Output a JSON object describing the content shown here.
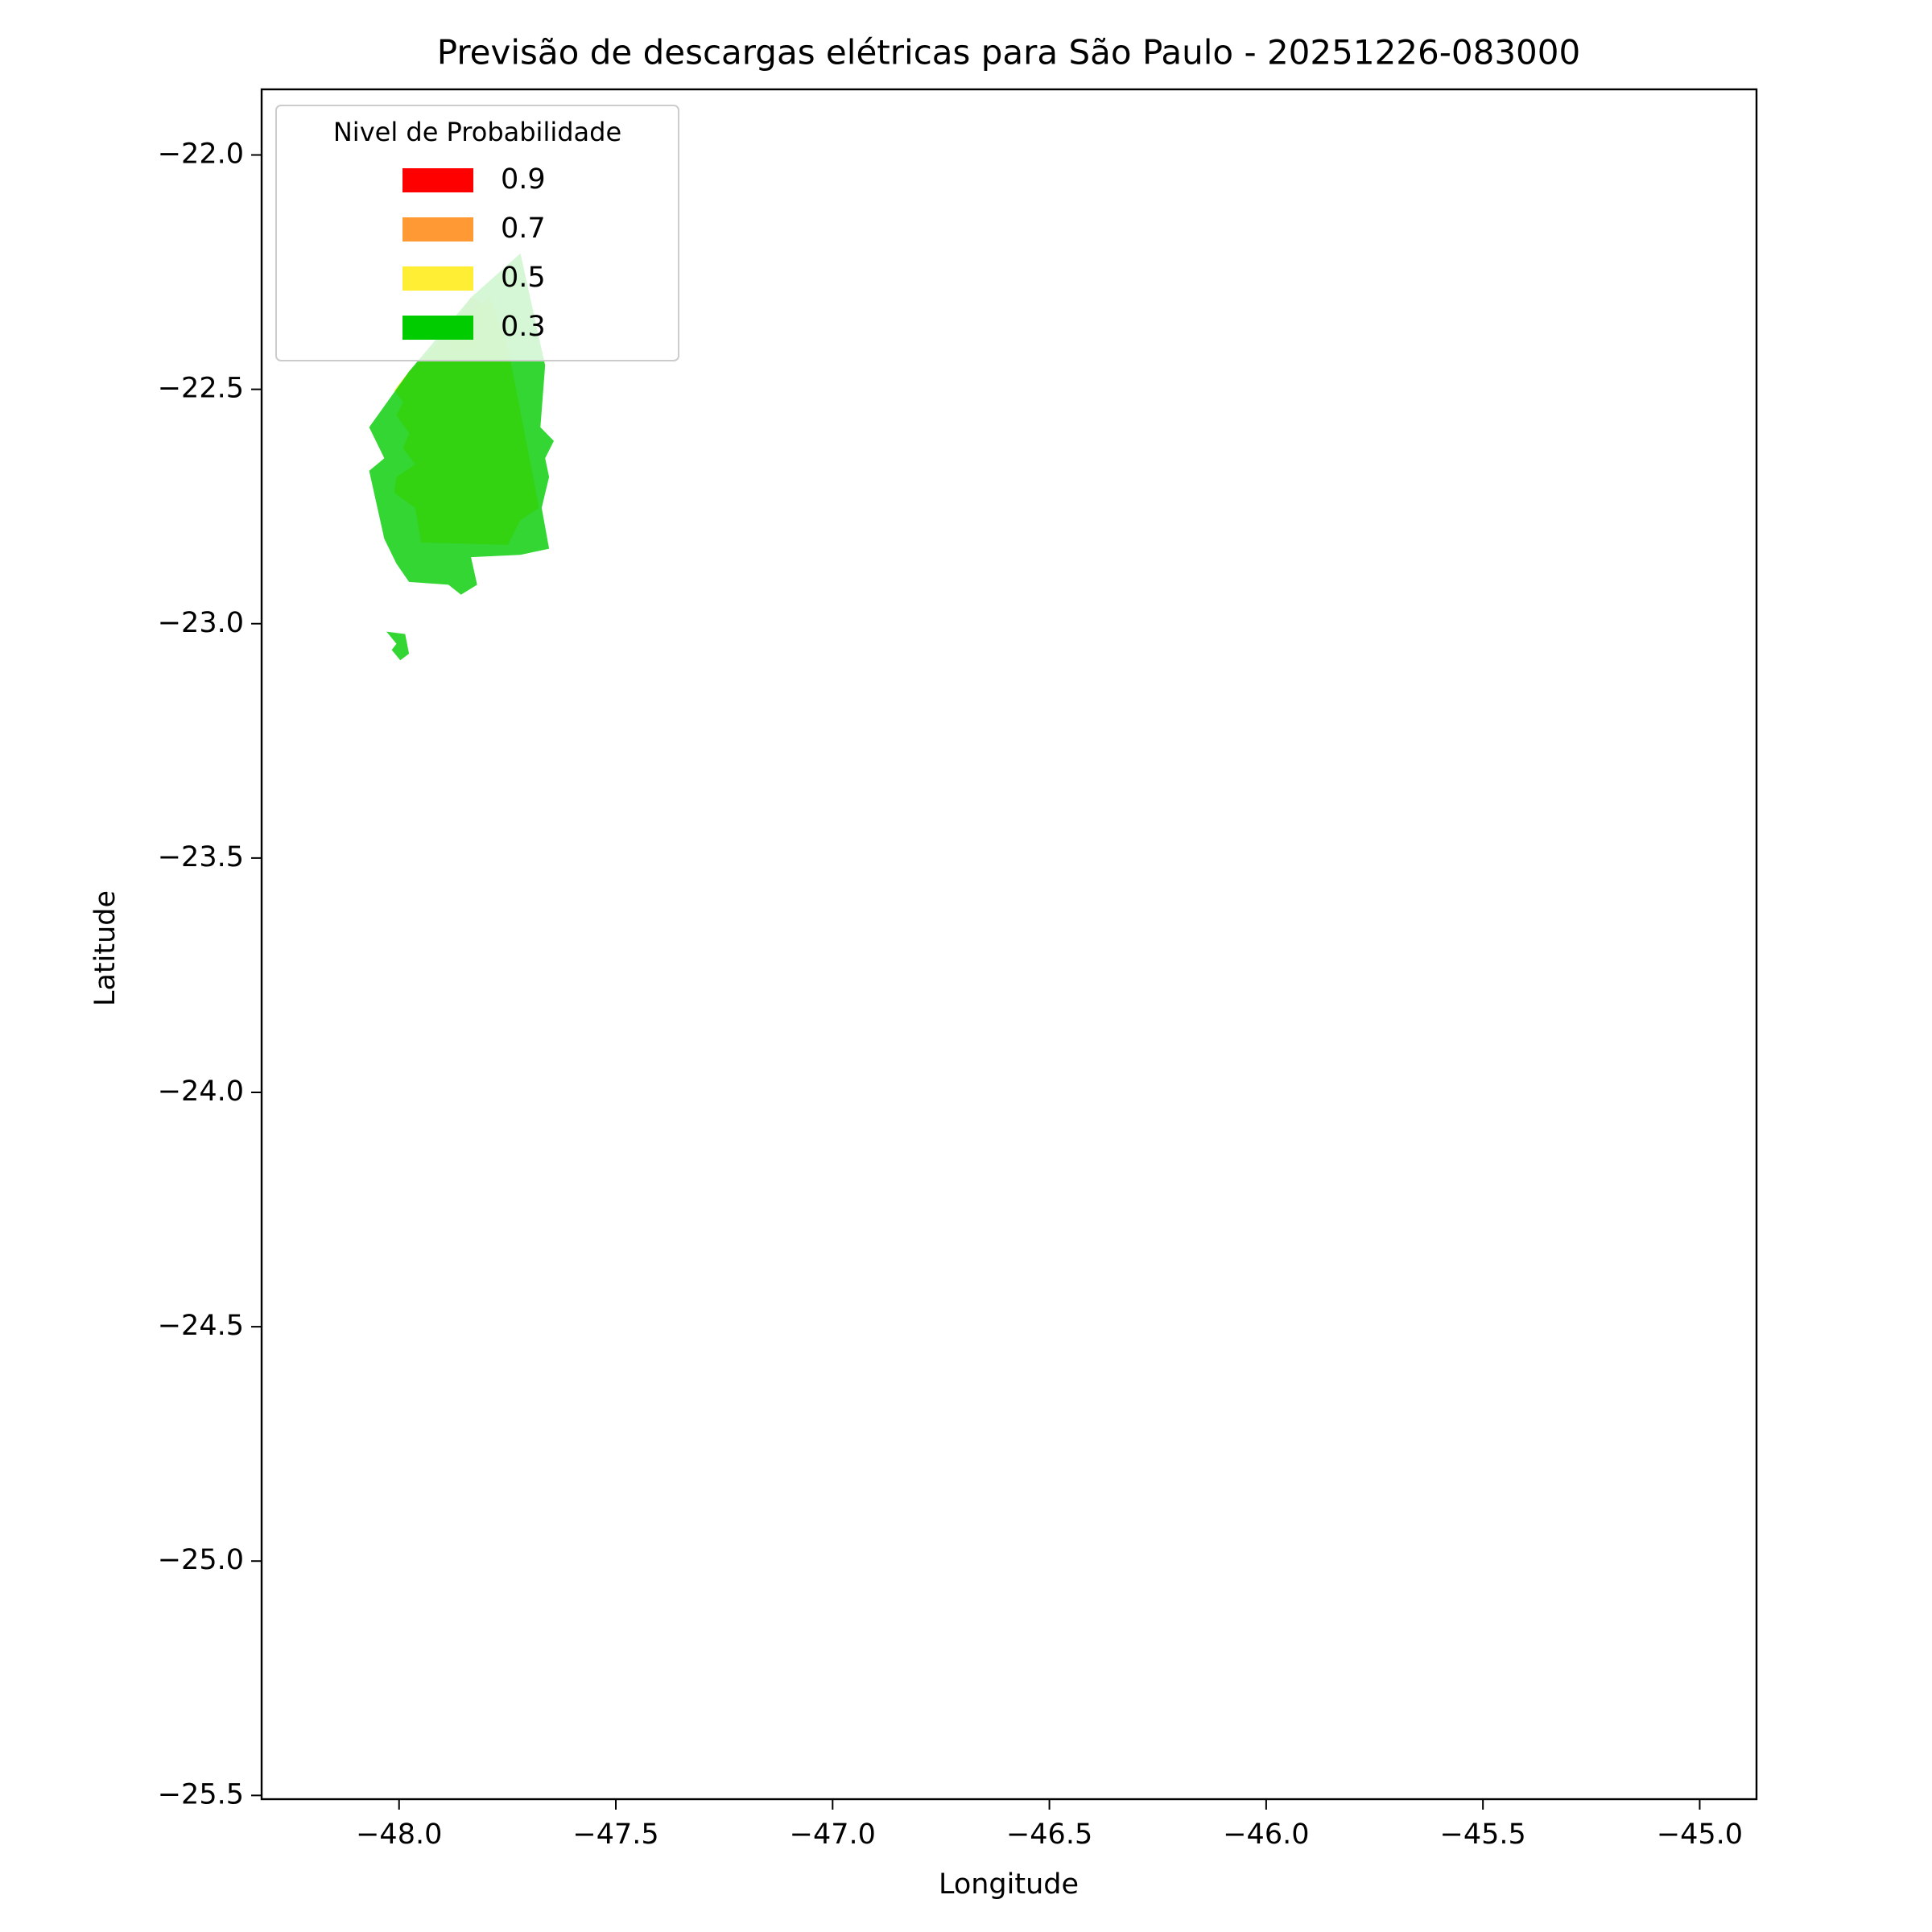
{
  "chart_data": {
    "type": "contour",
    "title": "Previsão de descargas elétricas para São Paulo - 20251226-083000",
    "xlabel": "Longitude",
    "ylabel": "Latitude",
    "xlim": [
      -48.317,
      -44.869
    ],
    "ylim": [
      -25.508,
      -21.86
    ],
    "xticks": [
      {
        "value": -48,
        "label": "−48.0"
      },
      {
        "value": -47.5,
        "label": "−47.5"
      },
      {
        "value": -47,
        "label": "−47.0"
      },
      {
        "value": -46.5,
        "label": "−46.5"
      },
      {
        "value": -46,
        "label": "−46.0"
      },
      {
        "value": -45.5,
        "label": "−45.5"
      },
      {
        "value": -45,
        "label": "−45.0"
      }
    ],
    "yticks": [
      {
        "value": -22,
        "label": "−22.0"
      },
      {
        "value": -22.5,
        "label": "−22.5"
      },
      {
        "value": -23,
        "label": "−23.0"
      },
      {
        "value": -23.5,
        "label": "−23.5"
      },
      {
        "value": -24,
        "label": "−24.0"
      },
      {
        "value": -24.5,
        "label": "−24.5"
      },
      {
        "value": -25,
        "label": "−25.0"
      },
      {
        "value": -25.5,
        "label": "−25.5"
      }
    ],
    "legend_title": "Nivel de Probabilidade",
    "legend": "upper left",
    "alpha": 0.8,
    "series": [
      {
        "name": "0.9",
        "color": "#ff0000"
      },
      {
        "name": "0.7",
        "color": "#ff9933",
        "x": [
          -47.891,
          -47.834,
          -47.806,
          -47.82,
          -47.877
        ],
        "y": [
          -22.383,
          -22.304,
          -22.317,
          -22.409,
          -22.422
        ]
      },
      {
        "name": "0.5",
        "color": "#ffee33",
        "x": [
          -47.791,
          -47.749,
          -47.677,
          -47.72,
          -47.749,
          -47.949,
          -47.963,
          -48.011,
          -48.006,
          -47.963,
          -47.991,
          -47.977,
          -48.006,
          -47.991,
          -48.011,
          -47.977,
          -47.891
        ],
        "y": [
          -22.304,
          -22.409,
          -22.753,
          -22.779,
          -22.832,
          -22.827,
          -22.753,
          -22.721,
          -22.687,
          -22.66,
          -22.626,
          -22.594,
          -22.555,
          -22.528,
          -22.502,
          -22.462,
          -22.383
        ]
      },
      {
        "name": "0.3",
        "color": "#00cc00",
        "x": [
          -47.72,
          -47.663,
          -47.674,
          -47.643,
          -47.663,
          -47.654,
          -47.671,
          -47.654,
          -47.72,
          -47.834,
          -47.82,
          -47.857,
          -47.886,
          -47.977,
          -48.006,
          -48.034,
          -48.069,
          -48.034,
          -48.069,
          -47.977,
          -47.834,
          null,
          -48.029,
          -47.986,
          -47.977,
          -47.997,
          -48.017,
          -48.006
        ],
        "y": [
          -22.21,
          -22.449,
          -22.581,
          -22.61,
          -22.647,
          -22.687,
          -22.753,
          -22.84,
          -22.853,
          -22.858,
          -22.917,
          -22.938,
          -22.917,
          -22.911,
          -22.872,
          -22.819,
          -22.674,
          -22.647,
          -22.581,
          -22.462,
          -22.304,
          null,
          -23.017,
          -23.022,
          -23.064,
          -23.078,
          -23.056,
          -23.043
        ]
      }
    ]
  }
}
